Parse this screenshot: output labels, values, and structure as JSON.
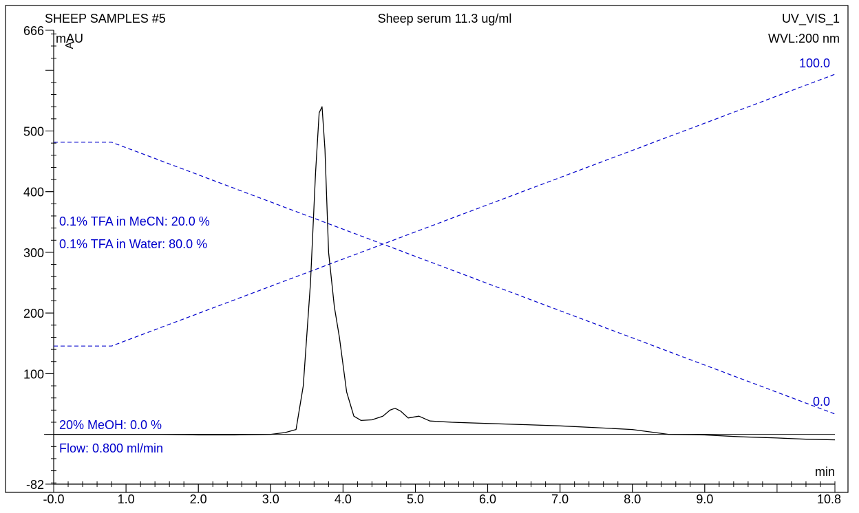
{
  "header": {
    "left": "SHEEP SAMPLES #5",
    "center": "Sheep serum 11.3 ug/ml",
    "right": "UV_VIS_1",
    "wavelength": "WVL:200 nm"
  },
  "chart_data": {
    "type": "line",
    "xlabel": "min",
    "ylabel": "mAU",
    "xlim": [
      0.0,
      10.8
    ],
    "ylim": [
      -82,
      666
    ],
    "x_ticks": [
      "-0.0",
      "1.0",
      "2.0",
      "3.0",
      "4.0",
      "5.0",
      "6.0",
      "7.0",
      "8.0",
      "9.0",
      "10.8"
    ],
    "y_ticks": [
      "666",
      "500",
      "400",
      "300",
      "200",
      "100",
      "-82"
    ],
    "grid": false,
    "series": [
      {
        "color": "#000000",
        "x": [
          0.0,
          0.5,
          1.0,
          1.5,
          2.0,
          2.5,
          3.0,
          3.2,
          3.35,
          3.45,
          3.55,
          3.62,
          3.67,
          3.71,
          3.75,
          3.8,
          3.88,
          3.95,
          4.05,
          4.15,
          4.25,
          4.4,
          4.55,
          4.65,
          4.72,
          4.8,
          4.9,
          5.05,
          5.2,
          5.5,
          6.0,
          6.5,
          7.0,
          7.5,
          8.0,
          8.5,
          9.0,
          9.5,
          10.0,
          10.4,
          10.8
        ],
        "y": [
          0,
          0,
          0,
          0,
          -1,
          -1,
          0,
          3,
          8,
          80,
          250,
          430,
          530,
          540,
          470,
          300,
          210,
          160,
          70,
          30,
          23,
          24,
          30,
          40,
          43,
          38,
          27,
          30,
          22,
          20,
          18,
          16,
          14,
          11,
          8,
          0,
          -1,
          -4,
          -6,
          -8,
          -9
        ]
      }
    ],
    "gradient_lines": {
      "color": "#0000cc",
      "max_label": "100.0",
      "min_label": "0.0",
      "labels": [
        "0.1% TFA in MeCN: 20.0 %",
        "0.1% TFA in Water: 80.0 %",
        "20% MeOH: 0.0 %",
        "Flow: 0.800 ml/min"
      ],
      "mecn_percent": {
        "x": [
          0.0,
          0.8,
          10.8
        ],
        "y": [
          20,
          20,
          100
        ]
      },
      "water_percent": {
        "x": [
          0.0,
          0.8,
          10.8
        ],
        "y": [
          80,
          80,
          0
        ]
      }
    }
  },
  "colors": {
    "trace": "#000000",
    "gradient": "#0000cc",
    "axis": "#000000"
  }
}
